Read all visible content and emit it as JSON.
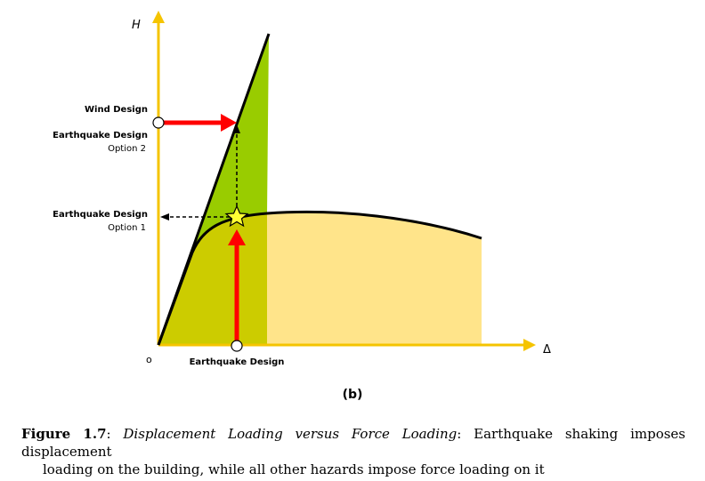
{
  "labels": {
    "y_axis": "H",
    "x_axis": "Δ",
    "origin": "o",
    "wind_design": "Wind Design",
    "eq_design_opt2_title": "Earthquake Design",
    "eq_design_opt2_sub": "Option 2",
    "eq_design_opt1_title": "Earthquake Design",
    "eq_design_opt1_sub": "Option 1",
    "eq_design_x": "Earthquake Design"
  },
  "panel_label": "(b)",
  "caption": {
    "figure_number": "Figure 1.7",
    "colon": ":",
    "title": "Displacement Loading versus Force Loading",
    "text_line1": ": Earthquake shaking imposes displacement",
    "text_line2": "loading on the building, while all other hazards impose force loading on it"
  },
  "colors": {
    "axis": "#F5C400",
    "green": "#99CC00",
    "olive": "#CCCC00",
    "yellow_fill": "#FFE48A",
    "arrow_red": "#FF0000",
    "star": "#FFFF33",
    "curve": "#000000"
  }
}
